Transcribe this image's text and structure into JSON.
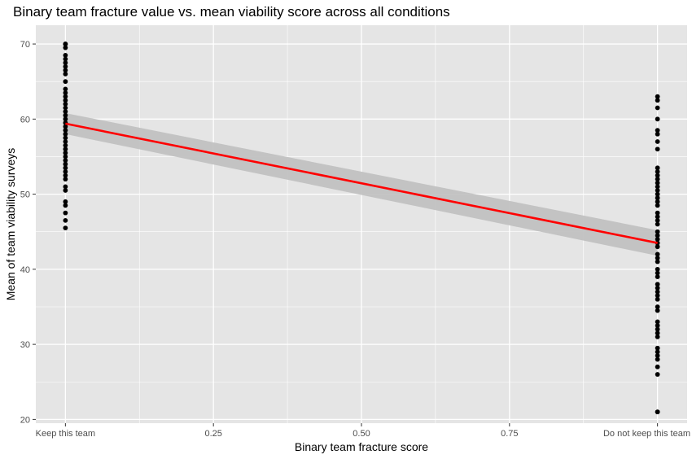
{
  "chart_data": {
    "type": "scatter",
    "title": "Binary team fracture value vs. mean viability score across all conditions",
    "xlabel": "Binary team fracture score",
    "ylabel": "Mean of team viability surveys",
    "xlim": [
      -0.05,
      1.05
    ],
    "ylim": [
      19.5,
      72.5
    ],
    "x_ticks": [
      {
        "value": 0,
        "label": "Keep this team"
      },
      {
        "value": 0.25,
        "label": "0.25"
      },
      {
        "value": 0.5,
        "label": "0.50"
      },
      {
        "value": 0.75,
        "label": "0.75"
      },
      {
        "value": 1,
        "label": "Do not keep this team"
      }
    ],
    "y_ticks": [
      20,
      30,
      40,
      50,
      60,
      70
    ],
    "grid": true,
    "colors": {
      "panel": "#e5e5e5",
      "grid": "#ffffff",
      "point": "#000000",
      "fit_line": "#ff0000",
      "ribbon": "#bfbfbf"
    },
    "series": [
      {
        "x": 0,
        "y": [
          70,
          70,
          69.5,
          68.5,
          68,
          67.5,
          67,
          66.5,
          66,
          65,
          64,
          63.5,
          63,
          62.5,
          62,
          61.5,
          61,
          60.5,
          60,
          59.5,
          59,
          58.5,
          58,
          57.5,
          57,
          56.5,
          56,
          55.5,
          55,
          54.5,
          54,
          53.5,
          53,
          52.5,
          52,
          51,
          50.5,
          49,
          48.5,
          47.5,
          46.5,
          45.5
        ]
      },
      {
        "x": 1,
        "y": [
          63,
          62.5,
          61.5,
          60,
          58.5,
          58,
          57,
          56,
          53.5,
          53,
          52.5,
          52,
          51.5,
          51,
          50.5,
          50,
          49.5,
          49,
          48.5,
          47.5,
          47,
          46.5,
          46,
          45,
          44.5,
          44,
          43.5,
          43,
          42,
          41.5,
          41,
          40,
          39.5,
          39,
          38,
          37.5,
          37,
          36.5,
          36,
          35,
          34.5,
          33,
          32.5,
          32,
          31.5,
          31,
          29.5,
          29,
          28.5,
          28,
          27,
          26,
          21,
          21
        ]
      }
    ],
    "fit": {
      "x": [
        0,
        1
      ],
      "y": [
        59.4,
        43.5
      ],
      "ci_lower": [
        58,
        41.8
      ],
      "ci_upper": [
        60.8,
        45.2
      ]
    }
  }
}
